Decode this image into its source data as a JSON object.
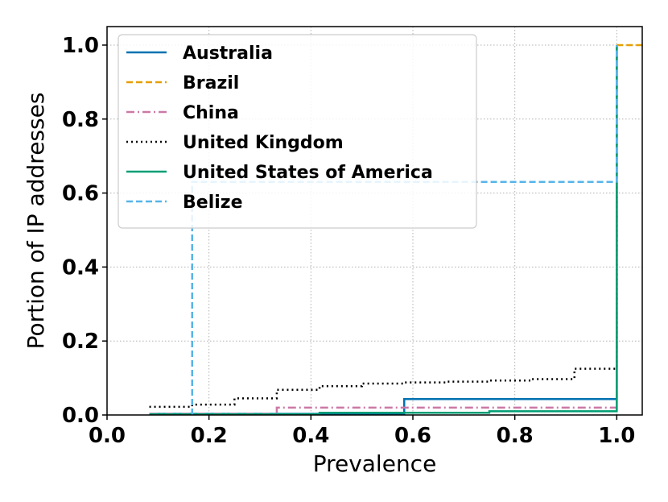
{
  "chart_data": {
    "type": "line",
    "step": "post",
    "title": "",
    "xlabel": "Prevalence",
    "ylabel": "Portion of IP addresses",
    "xlim": [
      0.0,
      1.05
    ],
    "ylim": [
      0.0,
      1.05
    ],
    "x_ticks": [
      "0.0",
      "0.2",
      "0.4",
      "0.6",
      "0.8",
      "1.0"
    ],
    "y_ticks": [
      "0.0",
      "0.2",
      "0.4",
      "0.6",
      "0.8",
      "1.0"
    ],
    "grid": true,
    "legend_position": "top-left",
    "series": [
      {
        "name": "Australia",
        "color": "#0072B2",
        "dash": "solid",
        "x": [
          0.083,
          0.583,
          1.0,
          1.0
        ],
        "y": [
          0.003,
          0.043,
          0.043,
          1.0
        ]
      },
      {
        "name": "Brazil",
        "color": "#E69F00",
        "dash": "dashed",
        "x": [
          1.0,
          1.05
        ],
        "y": [
          1.0,
          1.0
        ]
      },
      {
        "name": "China",
        "color": "#CC79A7",
        "dash": "dashdot",
        "x": [
          0.083,
          0.333,
          0.917,
          1.0,
          1.0
        ],
        "y": [
          0.003,
          0.02,
          0.02,
          0.02,
          1.0
        ]
      },
      {
        "name": "United Kingdom",
        "color": "#000000",
        "dash": "dotted",
        "x": [
          0.083,
          0.167,
          0.25,
          0.333,
          0.417,
          0.5,
          0.583,
          0.667,
          0.75,
          0.833,
          0.917,
          1.0,
          1.0
        ],
        "y": [
          0.022,
          0.028,
          0.045,
          0.068,
          0.078,
          0.085,
          0.088,
          0.09,
          0.093,
          0.097,
          0.125,
          0.125,
          1.0
        ]
      },
      {
        "name": "United States of America",
        "color": "#009E73",
        "dash": "solid",
        "x": [
          0.083,
          0.417,
          0.75,
          1.0,
          1.0
        ],
        "y": [
          0.002,
          0.006,
          0.01,
          0.012,
          1.0
        ]
      },
      {
        "name": "Belize",
        "color": "#56B4E9",
        "dash": "dashed",
        "x": [
          0.167,
          0.167,
          1.0,
          1.0
        ],
        "y": [
          0.0,
          0.63,
          0.66,
          1.0
        ]
      }
    ]
  }
}
